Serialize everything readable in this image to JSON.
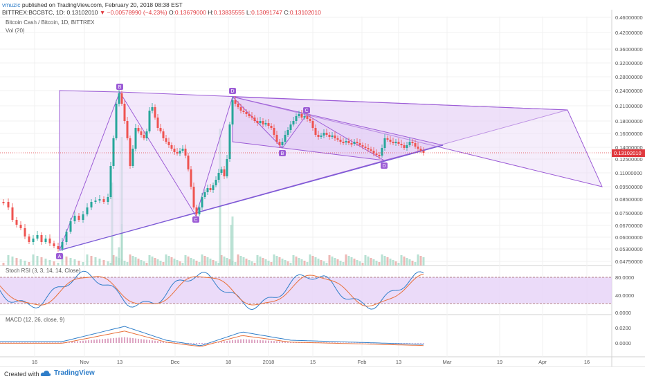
{
  "header": {
    "user": "vmuzic",
    "published_text": "published on TradingView.com, February 20, 2018 08:38 EST",
    "symbol": "BITTREX:BCCBTC, 1D",
    "last": "0.13102010",
    "change": "▼ −0.00578990 (−4.23%)",
    "open_label": "O:",
    "open": "0.13679000",
    "high_label": "H:",
    "high": "0.13835555",
    "low_label": "L:",
    "low": "0.13091747",
    "close_label": "C:",
    "close": "0.13102010"
  },
  "legend": {
    "title": "Bitcoin Cash / Bitcoin, 1D, BITTREX",
    "volume": "Vol (20)",
    "stoch": "Stoch RSI (3, 3, 14, 14, Close)",
    "macd": "MACD (12, 26, close, 9)"
  },
  "price_axis": {
    "ticks": [
      "0.46000000",
      "0.42000000",
      "0.36000000",
      "0.32000000",
      "0.28000000",
      "0.24000000",
      "0.21000000",
      "0.18000000",
      "0.16000000",
      "0.14000000",
      "0.12500000",
      "0.11000000",
      "0.09500000",
      "0.08500000",
      "0.07500000",
      "0.06700000",
      "0.06000000",
      "0.05300000",
      "0.04750000"
    ],
    "current_price": "0.13102010",
    "current_price_color": "#e0393e"
  },
  "stoch_axis": {
    "ticks": [
      "80.0000",
      "40.0000",
      "0.0000"
    ]
  },
  "macd_axis": {
    "ticks": [
      "0.0200",
      "0.0000"
    ]
  },
  "time_axis": {
    "ticks": [
      "16",
      "Nov",
      "13",
      "Dec",
      "18",
      "2018",
      "15",
      "Feb",
      "13",
      "Mar",
      "19",
      "Apr",
      "16"
    ]
  },
  "pattern_labels": {
    "A": "A",
    "B1": "B",
    "C1": "C",
    "D1": "D",
    "B2": "B",
    "C2": "C",
    "D2": "D"
  },
  "colors": {
    "up": "#26a69a",
    "down": "#ef5350",
    "pattern": "#9c5cd6",
    "stoch_k": "#2f7ec9",
    "stoch_d": "#e8703a",
    "accent": "#2f7ec9"
  },
  "footer": {
    "created": "Created with",
    "brand": "TradingView"
  }
}
